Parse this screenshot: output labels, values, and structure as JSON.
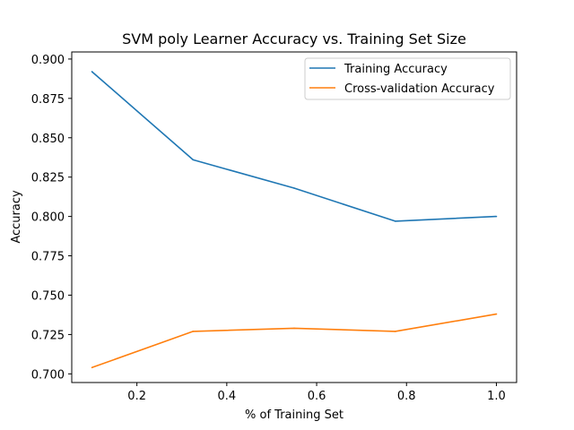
{
  "chart_data": {
    "type": "line",
    "title": "SVM poly Learner Accuracy vs. Training Set Size",
    "xlabel": "% of Training Set",
    "ylabel": "Accuracy",
    "xlim": [
      0.055,
      1.045
    ],
    "ylim": [
      0.6945,
      0.9045
    ],
    "xticks": [
      "0.2",
      "0.4",
      "0.6",
      "0.8",
      "1.0"
    ],
    "yticks": [
      "0.700",
      "0.725",
      "0.750",
      "0.775",
      "0.800",
      "0.825",
      "0.850",
      "0.875",
      "0.900"
    ],
    "grid": false,
    "legend_position": "top-right",
    "x": [
      0.1,
      0.325,
      0.55,
      0.775,
      1.0
    ],
    "series": [
      {
        "name": "Training Accuracy",
        "color": "#1f77b4",
        "values": [
          0.892,
          0.836,
          0.818,
          0.797,
          0.8
        ]
      },
      {
        "name": "Cross-validation Accuracy",
        "color": "#ff7f0e",
        "values": [
          0.704,
          0.727,
          0.729,
          0.727,
          0.738
        ]
      }
    ]
  }
}
